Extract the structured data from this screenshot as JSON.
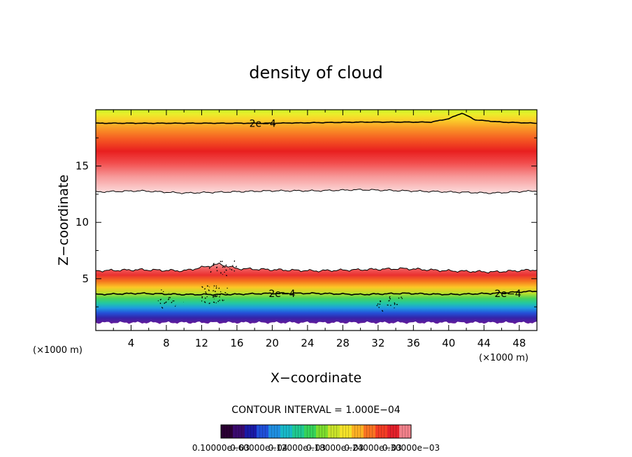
{
  "chart_data": {
    "type": "contour",
    "title": "density of cloud",
    "xlabel": "X−coordinate",
    "ylabel": "Z−coordinate",
    "x_unit": "(×1000 m)",
    "y_unit": "(×1000 m)",
    "xlim": [
      0,
      50
    ],
    "ylim": [
      0.4,
      20.0
    ],
    "x_ticks": [
      4,
      8,
      12,
      16,
      20,
      24,
      28,
      32,
      36,
      40,
      44,
      48
    ],
    "y_ticks": [
      5,
      10,
      15
    ],
    "contour_interval_text": "CONTOUR INTERVAL = 1.000E−04",
    "contour_labels": [
      {
        "text": "2e−4",
        "x": 17.4,
        "z": 18.8
      },
      {
        "text": "2e−4",
        "x": 19.6,
        "z": 3.7
      },
      {
        "text": "2e−4",
        "x": 45.2,
        "z": 3.7
      }
    ],
    "upper_layer": {
      "base_z": [
        [
          0,
          12.7
        ],
        [
          5,
          12.8
        ],
        [
          10,
          12.6
        ],
        [
          15,
          12.7
        ],
        [
          20,
          12.8
        ],
        [
          25,
          12.8
        ],
        [
          30,
          12.9
        ],
        [
          35,
          12.8
        ],
        [
          40,
          12.7
        ],
        [
          45,
          12.6
        ],
        [
          50,
          12.8
        ]
      ],
      "contour_2e4_z": [
        [
          0,
          18.8
        ],
        [
          10,
          18.8
        ],
        [
          20,
          18.8
        ],
        [
          30,
          18.9
        ],
        [
          38,
          18.9
        ],
        [
          40,
          19.2
        ],
        [
          41.5,
          19.7
        ],
        [
          43,
          19.1
        ],
        [
          46,
          18.9
        ],
        [
          50,
          18.8
        ]
      ],
      "peak_z": 15.0
    },
    "lower_layer": {
      "top_z": [
        [
          0,
          5.7
        ],
        [
          5,
          5.8
        ],
        [
          10,
          5.7
        ],
        [
          14,
          6.3
        ],
        [
          16,
          5.9
        ],
        [
          20,
          5.8
        ],
        [
          25,
          5.7
        ],
        [
          30,
          5.8
        ],
        [
          35,
          5.9
        ],
        [
          40,
          5.7
        ],
        [
          45,
          5.6
        ],
        [
          50,
          5.8
        ]
      ],
      "contour_2e4_z": [
        [
          0,
          3.6
        ],
        [
          5,
          3.7
        ],
        [
          10,
          3.6
        ],
        [
          15,
          3.6
        ],
        [
          20,
          3.7
        ],
        [
          25,
          3.7
        ],
        [
          30,
          3.6
        ],
        [
          35,
          3.7
        ],
        [
          40,
          3.6
        ],
        [
          45,
          3.7
        ],
        [
          50,
          3.9
        ]
      ],
      "bottom_z": 1.1
    },
    "colorbar": {
      "tick_labels": [
        "0.10000e−03",
        "0.60000e−04",
        "0.12000e−03",
        "0.18000e−03",
        "0.24000e−03",
        "0.30000e−03"
      ],
      "colors": [
        "#2a0033",
        "#3a0a6e",
        "#1a1aa6",
        "#1f4fd8",
        "#1f8ee0",
        "#18b8c8",
        "#20c890",
        "#36d25a",
        "#7cdc2e",
        "#c8e22a",
        "#f4e12a",
        "#fcb024",
        "#f97322",
        "#f23d24",
        "#e3202a",
        "#f0808a"
      ]
    }
  }
}
